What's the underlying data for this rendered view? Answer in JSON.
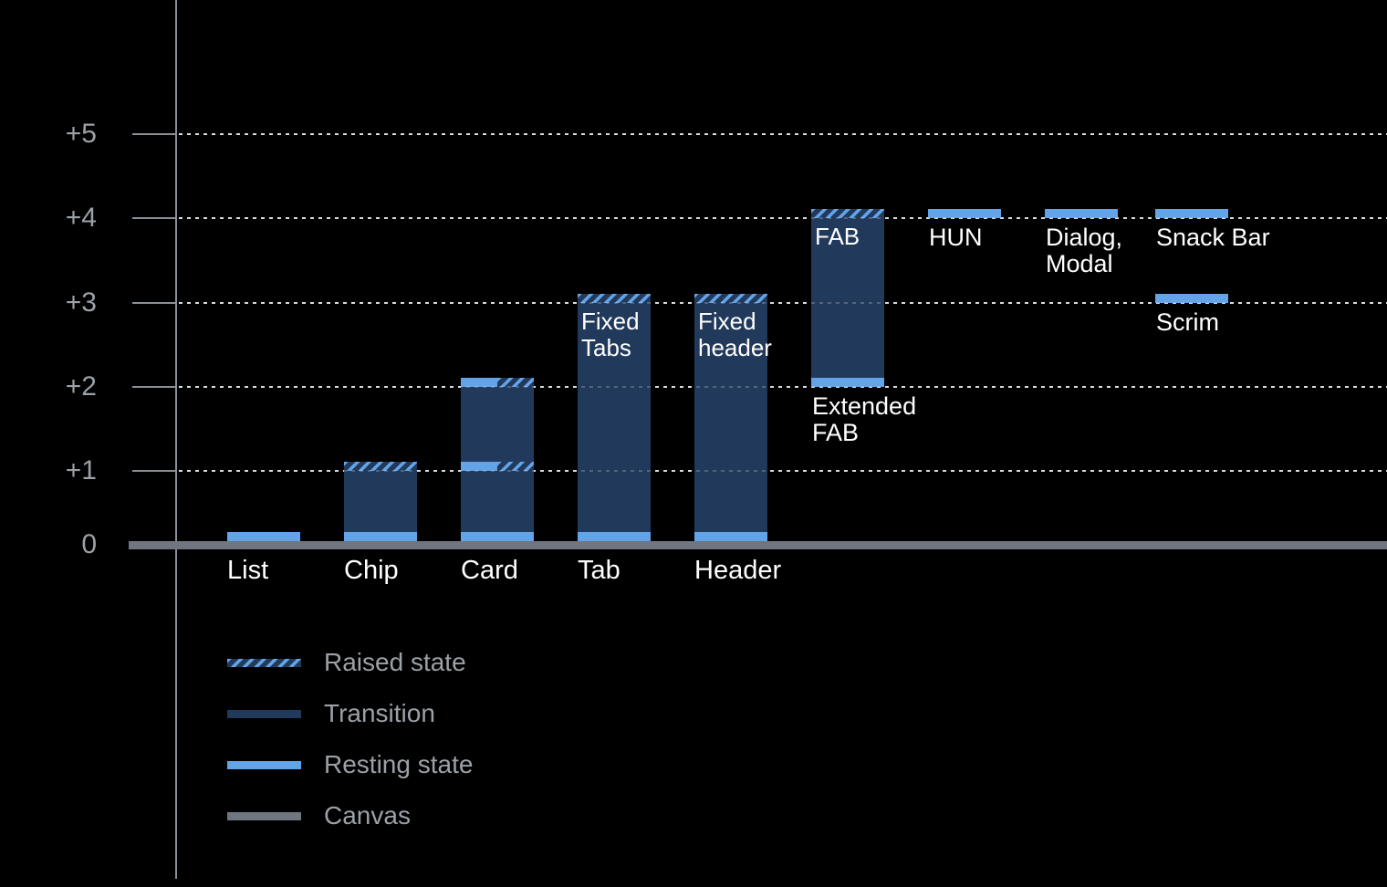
{
  "colors": {
    "background": "#000000",
    "transition": "#21395A",
    "resting": "#63A3E8",
    "canvas": "#6F7680",
    "axis": "#8A9098",
    "grid_dot": "#CDD1D6",
    "grid_dot_overlay": "rgba(255,255,255,0.22)",
    "tick_label": "#9BA1A7",
    "legend_label": "#9BA1A7",
    "component_label": "#FFFFFF"
  },
  "axis": {
    "ticks": [
      {
        "label": "+5",
        "level": 5
      },
      {
        "label": "+4",
        "level": 4
      },
      {
        "label": "+3",
        "level": 3
      },
      {
        "label": "+2",
        "level": 2
      },
      {
        "label": "+1",
        "level": 1
      },
      {
        "label": "0",
        "level": 0
      }
    ]
  },
  "chart_data": {
    "type": "bar",
    "title": "",
    "ylim": [
      0,
      5.5
    ],
    "ytick_labels": [
      "+5",
      "+4",
      "+3",
      "+2",
      "+1",
      "0"
    ],
    "grid": "horizontal dotted",
    "legend_position": "bottom-left",
    "legend": [
      {
        "label": "Raised state",
        "style": "raised"
      },
      {
        "label": "Transition",
        "style": "transition"
      },
      {
        "label": "Resting state",
        "style": "resting"
      },
      {
        "label": "Canvas",
        "style": "canvas"
      }
    ],
    "components": [
      {
        "name": "List",
        "column": 0,
        "axis_label": "List",
        "bands": [
          {
            "level": 0,
            "style": "resting"
          }
        ]
      },
      {
        "name": "Chip",
        "column": 1,
        "axis_label": "Chip",
        "body": {
          "from": 0,
          "to": 1
        },
        "bands": [
          {
            "level": 0,
            "style": "resting"
          },
          {
            "level": 1,
            "style": "raised"
          }
        ]
      },
      {
        "name": "Card",
        "column": 2,
        "axis_label": "Card",
        "body": {
          "from": 0,
          "to": 2
        },
        "bands": [
          {
            "level": 0,
            "style": "resting"
          },
          {
            "level": 1,
            "style": "split"
          },
          {
            "level": 2,
            "style": "split"
          }
        ]
      },
      {
        "name": "Tab",
        "column": 3,
        "axis_label": "Tab",
        "inner_label": [
          "Fixed",
          "Tabs"
        ],
        "body": {
          "from": 0,
          "to": 3
        },
        "bands": [
          {
            "level": 0,
            "style": "resting"
          },
          {
            "level": 3,
            "style": "raised"
          }
        ]
      },
      {
        "name": "Header",
        "column": 4,
        "axis_label": "Header",
        "inner_label": [
          "Fixed",
          "header"
        ],
        "body": {
          "from": 0,
          "to": 3
        },
        "bands": [
          {
            "level": 0,
            "style": "resting"
          },
          {
            "level": 3,
            "style": "raised"
          }
        ]
      },
      {
        "name": "FAB",
        "column": 5,
        "inner_label": [
          "FAB"
        ],
        "below_label": [
          "Extended",
          "FAB"
        ],
        "below_at": 2,
        "body": {
          "from": 2,
          "to": 4
        },
        "bands": [
          {
            "level": 2,
            "style": "resting"
          },
          {
            "level": 4,
            "style": "raised"
          }
        ]
      },
      {
        "name": "HUN",
        "column": 6,
        "below_label": [
          "HUN"
        ],
        "below_at": 4,
        "bands": [
          {
            "level": 4,
            "style": "resting"
          }
        ]
      },
      {
        "name": "Dialog, Modal",
        "column": 7,
        "below_label": [
          "Dialog,",
          "Modal"
        ],
        "below_at": 4,
        "bands": [
          {
            "level": 4,
            "style": "resting"
          }
        ]
      },
      {
        "name": "Snack Bar",
        "column": 8,
        "below_label": [
          "Snack Bar"
        ],
        "below_at": 4,
        "bands": [
          {
            "level": 4,
            "style": "resting"
          }
        ]
      },
      {
        "name": "Scrim",
        "column": 8,
        "below_label": [
          "Scrim"
        ],
        "below_at": 3,
        "bands": [
          {
            "level": 3,
            "style": "resting"
          }
        ]
      }
    ]
  }
}
